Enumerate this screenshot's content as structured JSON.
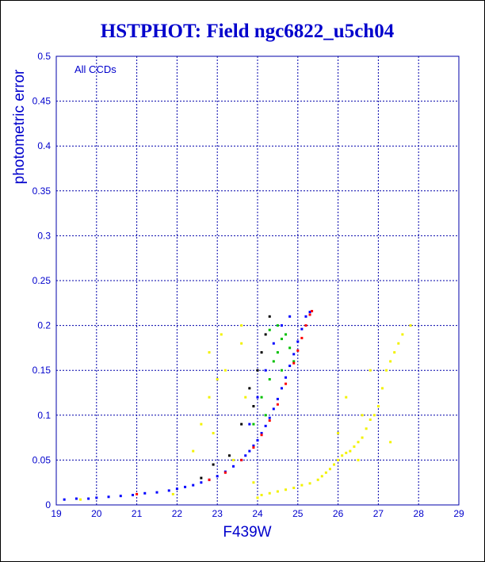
{
  "chart_data": {
    "type": "scatter",
    "title": "HSTPHOT: Field ngc6822_u5ch04",
    "xlabel": "F439W",
    "ylabel": "photometric error",
    "annotation": "All CCDs",
    "xlim": [
      19,
      29
    ],
    "ylim": [
      0,
      0.5
    ],
    "x_ticks": [
      "19",
      "20",
      "21",
      "22",
      "23",
      "24",
      "25",
      "26",
      "27",
      "28",
      "29"
    ],
    "y_ticks": [
      "0",
      "0.05",
      "0.1",
      "0.15",
      "0.2",
      "0.25",
      "0.3",
      "0.35",
      "0.4",
      "0.45",
      "0.5"
    ],
    "grid": true,
    "colors": {
      "text": "#0000cc",
      "grid": "#0000aa",
      "blue": "#0000ff",
      "red": "#ff0000",
      "green": "#00c000",
      "black": "#000000",
      "yellow": "#f2f200"
    },
    "series": [
      {
        "color": "yellow",
        "points": [
          [
            19.6,
            0.006
          ],
          [
            21.9,
            0.012
          ],
          [
            22.4,
            0.06
          ],
          [
            22.6,
            0.09
          ],
          [
            22.8,
            0.12
          ],
          [
            22.9,
            0.08
          ],
          [
            23.0,
            0.14
          ],
          [
            23.2,
            0.15
          ],
          [
            23.4,
            0.05
          ],
          [
            23.6,
            0.18
          ],
          [
            23.7,
            0.12
          ],
          [
            23.9,
            0.025
          ],
          [
            24.0,
            0.008
          ],
          [
            24.1,
            0.011
          ],
          [
            24.3,
            0.013
          ],
          [
            24.5,
            0.015
          ],
          [
            24.7,
            0.017
          ],
          [
            24.9,
            0.019
          ],
          [
            25.1,
            0.022
          ],
          [
            25.3,
            0.024
          ],
          [
            25.5,
            0.028
          ],
          [
            25.6,
            0.032
          ],
          [
            25.7,
            0.036
          ],
          [
            25.8,
            0.04
          ],
          [
            25.9,
            0.045
          ],
          [
            26.0,
            0.05
          ],
          [
            26.1,
            0.055
          ],
          [
            26.2,
            0.058
          ],
          [
            26.3,
            0.06
          ],
          [
            26.4,
            0.065
          ],
          [
            26.5,
            0.07
          ],
          [
            26.6,
            0.075
          ],
          [
            26.7,
            0.085
          ],
          [
            26.8,
            0.095
          ],
          [
            26.9,
            0.1
          ],
          [
            27.0,
            0.11
          ],
          [
            27.1,
            0.13
          ],
          [
            27.2,
            0.15
          ],
          [
            27.3,
            0.16
          ],
          [
            27.4,
            0.17
          ],
          [
            27.5,
            0.18
          ],
          [
            27.6,
            0.19
          ],
          [
            27.8,
            0.2
          ],
          [
            26.2,
            0.12
          ],
          [
            26.5,
            0.05
          ],
          [
            22.8,
            0.17
          ],
          [
            23.1,
            0.19
          ],
          [
            23.6,
            0.2
          ],
          [
            26.8,
            0.15
          ],
          [
            27.3,
            0.07
          ],
          [
            26.0,
            0.08
          ],
          [
            26.6,
            0.1
          ]
        ]
      },
      {
        "color": "blue",
        "points": [
          [
            19.2,
            0.006
          ],
          [
            19.5,
            0.007
          ],
          [
            19.8,
            0.007
          ],
          [
            20.0,
            0.008
          ],
          [
            20.3,
            0.009
          ],
          [
            20.6,
            0.01
          ],
          [
            20.9,
            0.011
          ],
          [
            21.2,
            0.013
          ],
          [
            21.5,
            0.014
          ],
          [
            21.8,
            0.016
          ],
          [
            22.0,
            0.018
          ],
          [
            22.2,
            0.02
          ],
          [
            22.4,
            0.022
          ],
          [
            22.6,
            0.025
          ],
          [
            22.8,
            0.028
          ],
          [
            23.0,
            0.032
          ],
          [
            23.2,
            0.037
          ],
          [
            23.4,
            0.043
          ],
          [
            23.6,
            0.05
          ],
          [
            23.7,
            0.055
          ],
          [
            23.8,
            0.06
          ],
          [
            23.9,
            0.066
          ],
          [
            24.0,
            0.072
          ],
          [
            24.1,
            0.08
          ],
          [
            24.2,
            0.088
          ],
          [
            24.3,
            0.097
          ],
          [
            24.4,
            0.107
          ],
          [
            24.5,
            0.118
          ],
          [
            24.6,
            0.13
          ],
          [
            24.7,
            0.142
          ],
          [
            24.8,
            0.155
          ],
          [
            24.9,
            0.168
          ],
          [
            25.0,
            0.182
          ],
          [
            25.1,
            0.196
          ],
          [
            25.2,
            0.21
          ],
          [
            25.3,
            0.215
          ],
          [
            24.6,
            0.2
          ],
          [
            24.4,
            0.18
          ],
          [
            24.2,
            0.15
          ],
          [
            24.0,
            0.12
          ],
          [
            23.8,
            0.09
          ],
          [
            24.8,
            0.21
          ]
        ]
      },
      {
        "color": "green",
        "points": [
          [
            23.9,
            0.09
          ],
          [
            24.1,
            0.12
          ],
          [
            24.3,
            0.14
          ],
          [
            24.4,
            0.16
          ],
          [
            24.5,
            0.17
          ],
          [
            24.6,
            0.185
          ],
          [
            24.7,
            0.19
          ],
          [
            24.5,
            0.2
          ],
          [
            24.3,
            0.195
          ],
          [
            24.8,
            0.175
          ],
          [
            24.2,
            0.1
          ],
          [
            24.9,
            0.16
          ],
          [
            24.6,
            0.15
          ]
        ]
      },
      {
        "color": "red",
        "points": [
          [
            22.8,
            0.028
          ],
          [
            23.2,
            0.036
          ],
          [
            23.6,
            0.05
          ],
          [
            23.9,
            0.064
          ],
          [
            24.1,
            0.078
          ],
          [
            24.3,
            0.094
          ],
          [
            24.5,
            0.112
          ],
          [
            24.7,
            0.135
          ],
          [
            24.9,
            0.158
          ],
          [
            25.0,
            0.172
          ],
          [
            25.1,
            0.186
          ],
          [
            25.2,
            0.2
          ],
          [
            25.3,
            0.212
          ],
          [
            25.35,
            0.216
          ],
          [
            21.0,
            0.012
          ]
        ]
      },
      {
        "color": "black",
        "points": [
          [
            22.6,
            0.03
          ],
          [
            23.3,
            0.055
          ],
          [
            23.6,
            0.09
          ],
          [
            23.8,
            0.13
          ],
          [
            24.0,
            0.15
          ],
          [
            24.1,
            0.17
          ],
          [
            24.2,
            0.19
          ],
          [
            23.9,
            0.11
          ],
          [
            24.3,
            0.21
          ],
          [
            22.9,
            0.045
          ]
        ]
      }
    ]
  }
}
